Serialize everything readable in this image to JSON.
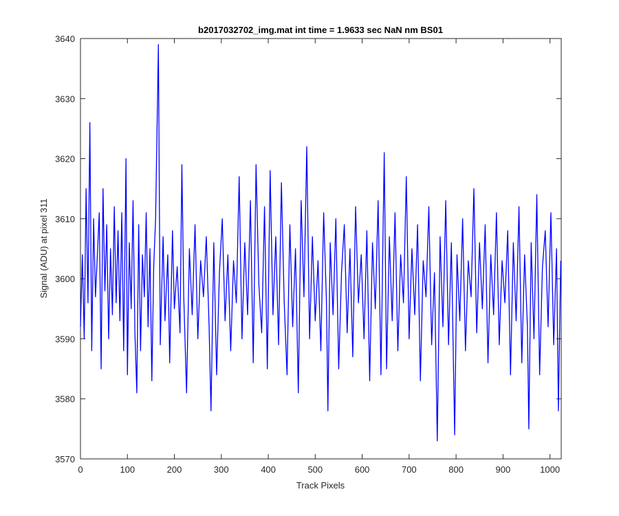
{
  "chart_data": {
    "type": "line",
    "title": "b2017032702_img.mat int time = 1.9633 sec  NaN nm BS01",
    "x_label": "Track Pixels",
    "y_label": "Signal (ADU) at pixel 311",
    "xlim": [
      0,
      1024
    ],
    "ylim": [
      3570,
      3640
    ],
    "xticks": [
      0,
      100,
      200,
      300,
      400,
      500,
      600,
      700,
      800,
      900,
      1000
    ],
    "yticks": [
      3570,
      3580,
      3590,
      3600,
      3610,
      3620,
      3630,
      3640
    ],
    "grid": false,
    "series": [
      {
        "color": "#0000ff",
        "x": [
          0,
          4,
          8,
          12,
          16,
          20,
          24,
          28,
          32,
          36,
          40,
          44,
          48,
          52,
          56,
          60,
          64,
          68,
          72,
          76,
          80,
          84,
          88,
          92,
          97,
          100,
          104,
          108,
          112,
          116,
          120,
          124,
          128,
          132,
          136,
          140,
          144,
          148,
          152,
          156,
          160,
          166,
          170,
          176,
          180,
          186,
          190,
          196,
          200,
          206,
          212,
          216,
          220,
          226,
          232,
          238,
          244,
          250,
          256,
          262,
          268,
          274,
          278,
          284,
          290,
          296,
          302,
          308,
          314,
          320,
          326,
          332,
          338,
          344,
          350,
          356,
          362,
          368,
          374,
          380,
          386,
          392,
          398,
          404,
          410,
          416,
          422,
          428,
          434,
          440,
          446,
          452,
          458,
          464,
          470,
          476,
          482,
          488,
          494,
          500,
          506,
          512,
          518,
          524,
          527,
          532,
          538,
          544,
          550,
          556,
          562,
          568,
          574,
          580,
          586,
          592,
          598,
          604,
          610,
          616,
          622,
          628,
          634,
          640,
          647,
          652,
          658,
          664,
          670,
          676,
          682,
          688,
          694,
          700,
          706,
          712,
          718,
          724,
          730,
          736,
          742,
          748,
          754,
          760,
          766,
          772,
          778,
          784,
          790,
          797,
          802,
          808,
          814,
          820,
          826,
          832,
          838,
          844,
          850,
          856,
          862,
          868,
          874,
          880,
          886,
          892,
          898,
          904,
          910,
          916,
          922,
          928,
          934,
          940,
          946,
          952,
          955,
          960,
          966,
          972,
          978,
          984,
          990,
          996,
          1002,
          1008,
          1014,
          1018,
          1023
        ],
        "values": [
          3592,
          3604,
          3590,
          3615,
          3596,
          3626,
          3588,
          3610,
          3597,
          3604,
          3611,
          3585,
          3615,
          3598,
          3609,
          3590,
          3605,
          3594,
          3612,
          3596,
          3608,
          3593,
          3611,
          3588,
          3620,
          3584,
          3606,
          3595,
          3613,
          3591,
          3581,
          3609,
          3588,
          3604,
          3597,
          3611,
          3592,
          3605,
          3583,
          3602,
          3610,
          3639,
          3589,
          3607,
          3593,
          3604,
          3586,
          3608,
          3595,
          3602,
          3591,
          3619,
          3597,
          3581,
          3605,
          3594,
          3609,
          3590,
          3603,
          3597,
          3607,
          3592,
          3578,
          3606,
          3584,
          3601,
          3610,
          3593,
          3604,
          3588,
          3603,
          3596,
          3617,
          3590,
          3606,
          3594,
          3613,
          3586,
          3619,
          3599,
          3591,
          3612,
          3585,
          3618,
          3594,
          3607,
          3589,
          3616,
          3596,
          3584,
          3609,
          3592,
          3605,
          3581,
          3613,
          3597,
          3622,
          3590,
          3607,
          3593,
          3603,
          3588,
          3611,
          3596,
          3578,
          3606,
          3594,
          3610,
          3585,
          3601,
          3609,
          3591,
          3605,
          3587,
          3612,
          3596,
          3604,
          3590,
          3608,
          3583,
          3606,
          3595,
          3613,
          3584,
          3621,
          3585,
          3607,
          3593,
          3611,
          3588,
          3604,
          3596,
          3617,
          3590,
          3605,
          3594,
          3609,
          3583,
          3603,
          3597,
          3612,
          3589,
          3601,
          3573,
          3607,
          3592,
          3613,
          3589,
          3606,
          3574,
          3604,
          3593,
          3610,
          3588,
          3603,
          3597,
          3615,
          3591,
          3606,
          3595,
          3609,
          3586,
          3604,
          3594,
          3611,
          3589,
          3603,
          3596,
          3608,
          3584,
          3606,
          3593,
          3612,
          3586,
          3604,
          3592,
          3575,
          3606,
          3590,
          3614,
          3584,
          3602,
          3608,
          3592,
          3611,
          3589,
          3605,
          3578,
          3603
        ]
      }
    ]
  }
}
